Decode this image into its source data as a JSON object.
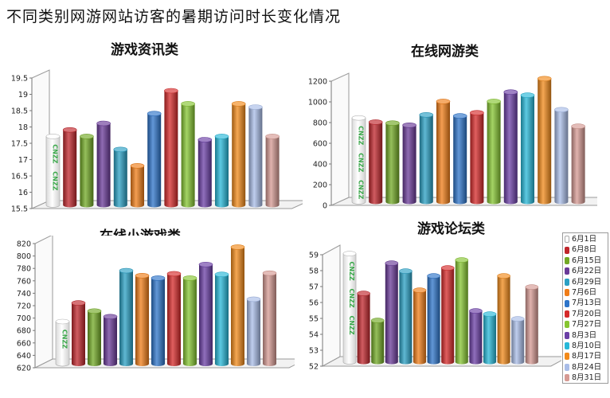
{
  "title": "不同类别网游网站访客的暑期访问时长变化情况",
  "legend": {
    "labels": [
      "6月1日",
      "6月8日",
      "6月15日",
      "6月22日",
      "6月29日",
      "7月6日",
      "7月13日",
      "7月20日",
      "7月27日",
      "8月3日",
      "8月10日",
      "8月17日",
      "8月24日",
      "8月31日"
    ],
    "colors": [
      "#e6e6e6",
      "#c0262c",
      "#72a925",
      "#6a3a98",
      "#2aa0c4",
      "#f07d18",
      "#2d74c9",
      "#d52a2a",
      "#86c531",
      "#6b3fa6",
      "#27b8d8",
      "#f28a1a",
      "#a9bde8",
      "#d69a93"
    ]
  },
  "watermark": "CNZZ",
  "chart_data": [
    {
      "type": "bar",
      "title": "游戏资讯类",
      "categories": [
        "6月1日",
        "6月8日",
        "6月15日",
        "6月22日",
        "6月29日",
        "7月6日",
        "7月13日",
        "7月20日",
        "7月27日",
        "8月3日",
        "8月10日",
        "8月17日",
        "8月24日",
        "8月31日"
      ],
      "series": [
        {
          "values": [
            17.6,
            17.8,
            17.6,
            18.0,
            17.2,
            16.7,
            18.3,
            19.0,
            18.6,
            17.5,
            17.6,
            18.6,
            18.5,
            17.6
          ]
        }
      ],
      "ylim": [
        15.5,
        19.5
      ],
      "yticks": [
        "15.5",
        "16",
        "16.5",
        "17",
        "17.5",
        "18",
        "18.5",
        "19",
        "19.5"
      ],
      "yticks_values": [
        15.5,
        16,
        16.5,
        17,
        17.5,
        18,
        18.5,
        19,
        19.5
      ],
      "grid": false
    },
    {
      "type": "bar",
      "title": "在线网游类",
      "categories": [
        "6月1日",
        "6月8日",
        "6月15日",
        "6月22日",
        "6月29日",
        "7月6日",
        "7月13日",
        "7月20日",
        "7月27日",
        "8月3日",
        "8月10日",
        "8月17日",
        "8月24日",
        "8月31日"
      ],
      "series": [
        {
          "values": [
            810,
            770,
            760,
            740,
            840,
            970,
            830,
            860,
            970,
            1060,
            1030,
            1190,
            890,
            730
          ]
        }
      ],
      "ylim": [
        0,
        1200
      ],
      "yticks": [
        "0",
        "200",
        "400",
        "600",
        "800",
        "1000",
        "1200"
      ],
      "yticks_values": [
        0,
        200,
        400,
        600,
        800,
        1000,
        1200
      ],
      "grid": false
    },
    {
      "type": "bar",
      "title": "在线小游戏类",
      "categories": [
        "6月1日",
        "6月8日",
        "6月15日",
        "6月22日",
        "6月29日",
        "7月6日",
        "7月13日",
        "7月20日",
        "7月27日",
        "8月3日",
        "8月10日",
        "8月17日",
        "8月24日",
        "8月31日"
      ],
      "series": [
        {
          "values": [
            688,
            718,
            705,
            696,
            770,
            762,
            758,
            765,
            758,
            780,
            764,
            808,
            724,
            766
          ]
        }
      ],
      "ylim": [
        620,
        820
      ],
      "yticks": [
        "620",
        "640",
        "660",
        "680",
        "700",
        "720",
        "740",
        "760",
        "780",
        "800",
        "820"
      ],
      "yticks_values": [
        620,
        640,
        660,
        680,
        700,
        720,
        740,
        760,
        780,
        800,
        820
      ],
      "grid": false
    },
    {
      "type": "bar",
      "title": "游戏论坛类",
      "categories": [
        "6月1日",
        "6月8日",
        "6月15日",
        "6月22日",
        "6月29日",
        "7月6日",
        "7月13日",
        "7月20日",
        "7月27日",
        "8月3日",
        "8月10日",
        "8月17日",
        "8月24日",
        "8月31日"
      ],
      "series": [
        {
          "values": [
            58.8,
            56.3,
            54.6,
            58.2,
            57.7,
            56.5,
            57.4,
            57.9,
            58.4,
            55.2,
            55.0,
            57.4,
            54.7,
            56.7
          ]
        }
      ],
      "ylim": [
        52,
        59
      ],
      "yticks": [
        "52",
        "53",
        "54",
        "55",
        "56",
        "57",
        "58",
        "59"
      ],
      "yticks_values": [
        52,
        53,
        54,
        55,
        56,
        57,
        58,
        59
      ],
      "grid": false
    }
  ]
}
